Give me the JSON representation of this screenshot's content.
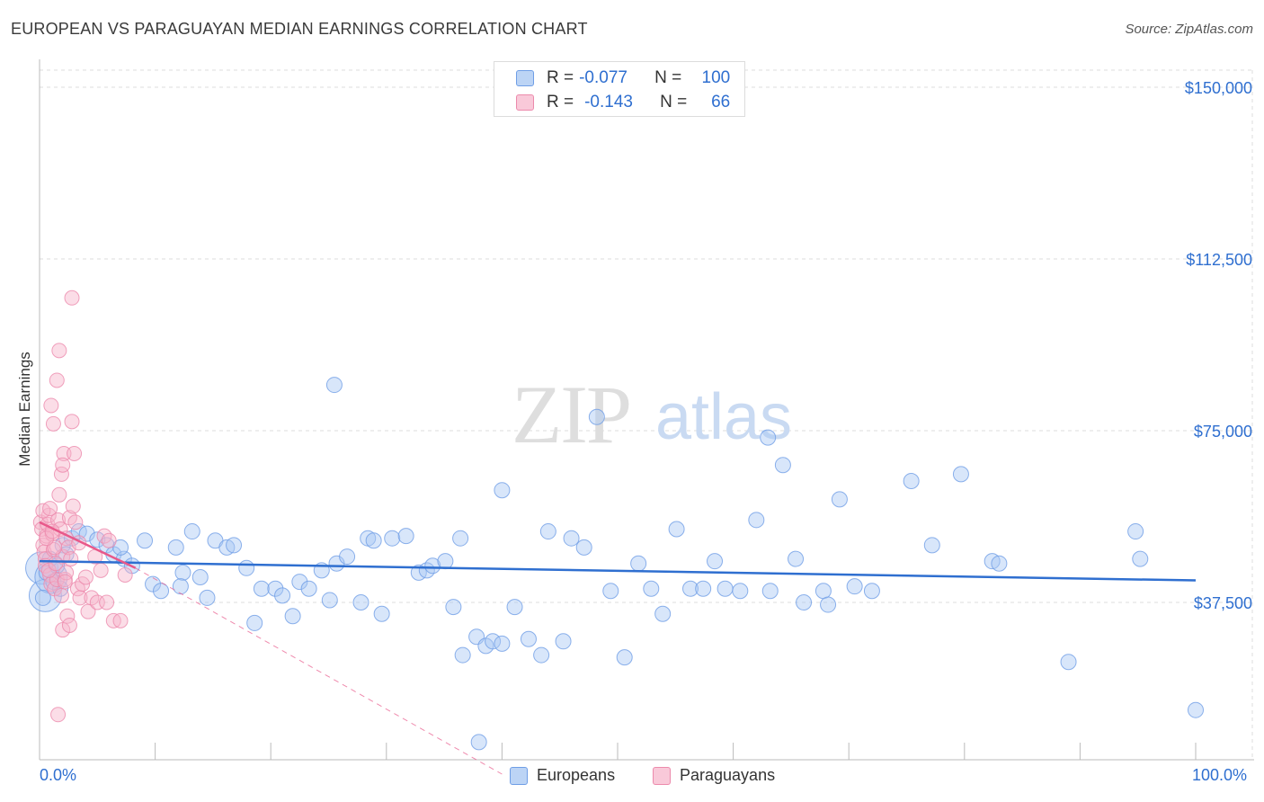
{
  "title": "EUROPEAN VS PARAGUAYAN MEDIAN EARNINGS CORRELATION CHART",
  "source": "Source: ZipAtlas.com",
  "colors": {
    "blue": "#2f6fd0",
    "blue_fill": "#a9c8f3",
    "pink": "#e8588a",
    "pink_fill": "#f7b3ca",
    "grid": "#dddddd"
  },
  "legend": {
    "r_label": "R =",
    "n_label": "N =",
    "rows": [
      {
        "series": "Europeans",
        "r": "-0.077",
        "n": "100"
      },
      {
        "series": "Paraguayans",
        "r": "-0.143",
        "n": "66"
      }
    ]
  },
  "chart_data": {
    "type": "scatter",
    "title": "EUROPEAN VS PARAGUAYAN MEDIAN EARNINGS CORRELATION CHART",
    "xlabel": "",
    "ylabel": "Median Earnings",
    "x_tick_labels": [
      "0.0%",
      "100.0%"
    ],
    "y_tick_labels": [
      "$37,500",
      "$75,000",
      "$112,500",
      "$150,000"
    ],
    "y_ticks": [
      37500,
      75000,
      112500,
      150000
    ],
    "xlim": [
      0,
      100
    ],
    "ylim": [
      0,
      155000
    ],
    "grid": true,
    "legend_position": "bottom",
    "series": [
      {
        "name": "Europeans",
        "color": "#2f6fd0",
        "trend": {
          "x0": 0,
          "y0": 46500,
          "x1": 100,
          "y1": 42300,
          "style": "solid"
        },
        "points": [
          [
            0.3,
            38500
          ],
          [
            0.6,
            44000
          ],
          [
            0.9,
            47000
          ],
          [
            1.2,
            42000
          ],
          [
            1.5,
            45500
          ],
          [
            1.8,
            40500
          ],
          [
            2.0,
            50000
          ],
          [
            2.3,
            48000
          ],
          [
            2.8,
            51500
          ],
          [
            3.4,
            53000
          ],
          [
            4.1,
            52500
          ],
          [
            5.0,
            51200
          ],
          [
            5.8,
            50000
          ],
          [
            6.4,
            48000
          ],
          [
            7.3,
            47000
          ],
          [
            8.0,
            45500
          ],
          [
            9.1,
            51000
          ],
          [
            7.0,
            49500
          ],
          [
            9.8,
            41500
          ],
          [
            10.5,
            40000
          ],
          [
            11.8,
            49500
          ],
          [
            12.4,
            44000
          ],
          [
            13.2,
            53000
          ],
          [
            13.9,
            43000
          ],
          [
            14.5,
            38500
          ],
          [
            15.2,
            51000
          ],
          [
            16.2,
            49500
          ],
          [
            16.8,
            50000
          ],
          [
            17.9,
            45000
          ],
          [
            18.6,
            33000
          ],
          [
            19.2,
            40500
          ],
          [
            20.4,
            40500
          ],
          [
            21.0,
            39000
          ],
          [
            21.9,
            34500
          ],
          [
            22.5,
            42000
          ],
          [
            23.3,
            40500
          ],
          [
            24.4,
            44500
          ],
          [
            25.1,
            38000
          ],
          [
            25.7,
            46000
          ],
          [
            26.6,
            47500
          ],
          [
            27.8,
            37500
          ],
          [
            28.4,
            51500
          ],
          [
            28.9,
            51000
          ],
          [
            29.6,
            35000
          ],
          [
            30.5,
            51500
          ],
          [
            31.7,
            52000
          ],
          [
            32.8,
            44000
          ],
          [
            33.5,
            44500
          ],
          [
            34.0,
            45500
          ],
          [
            35.1,
            46500
          ],
          [
            35.8,
            36500
          ],
          [
            36.4,
            51500
          ],
          [
            37.8,
            30000
          ],
          [
            38.6,
            28000
          ],
          [
            39.2,
            29000
          ],
          [
            40.0,
            28500
          ],
          [
            41.1,
            36500
          ],
          [
            42.3,
            29500
          ],
          [
            43.4,
            26000
          ],
          [
            44.0,
            53000
          ],
          [
            45.3,
            29000
          ],
          [
            46.0,
            51500
          ],
          [
            47.1,
            49500
          ],
          [
            48.2,
            78000
          ],
          [
            49.4,
            40000
          ],
          [
            50.6,
            25500
          ],
          [
            51.8,
            46000
          ],
          [
            52.9,
            40500
          ],
          [
            53.9,
            35000
          ],
          [
            55.1,
            53500
          ],
          [
            56.3,
            40500
          ],
          [
            57.4,
            40500
          ],
          [
            58.4,
            46500
          ],
          [
            59.3,
            40500
          ],
          [
            60.6,
            40000
          ],
          [
            62.0,
            55500
          ],
          [
            63.0,
            73500
          ],
          [
            64.3,
            67500
          ],
          [
            65.4,
            47000
          ],
          [
            66.1,
            37500
          ],
          [
            67.8,
            40000
          ],
          [
            68.2,
            37000
          ],
          [
            69.2,
            60000
          ],
          [
            72.0,
            40000
          ],
          [
            75.4,
            64000
          ],
          [
            77.2,
            50000
          ],
          [
            79.7,
            65500
          ],
          [
            82.4,
            46500
          ],
          [
            89.0,
            24500
          ],
          [
            95.2,
            47000
          ],
          [
            100.0,
            14000
          ],
          [
            25.5,
            85000
          ],
          [
            40.0,
            62000
          ],
          [
            63.2,
            40000
          ],
          [
            70.5,
            41000
          ],
          [
            83.0,
            46000
          ],
          [
            94.8,
            53000
          ],
          [
            36.6,
            26000
          ],
          [
            12.2,
            41000
          ],
          [
            38.0,
            7000
          ]
        ],
        "big_points": [
          [
            0.2,
            45000
          ],
          [
            0.5,
            39000
          ],
          [
            1.0,
            43000
          ]
        ]
      },
      {
        "name": "Paraguayans",
        "color": "#e8588a",
        "trend": {
          "x0": 0,
          "y0": 55000,
          "x1": 8.3,
          "y1": 45000,
          "style": "solid",
          "dashed_to": {
            "x": 40,
            "y": 0
          }
        },
        "points": [
          [
            0.1,
            55000
          ],
          [
            0.2,
            53500
          ],
          [
            0.3,
            50000
          ],
          [
            0.4,
            48500
          ],
          [
            0.5,
            47000
          ],
          [
            0.6,
            52000
          ],
          [
            0.7,
            54500
          ],
          [
            0.8,
            56500
          ],
          [
            0.3,
            57500
          ],
          [
            0.5,
            45500
          ],
          [
            0.9,
            43500
          ],
          [
            1.0,
            41500
          ],
          [
            1.1,
            52500
          ],
          [
            1.2,
            49000
          ],
          [
            1.3,
            40500
          ],
          [
            1.5,
            42500
          ],
          [
            1.6,
            55500
          ],
          [
            1.8,
            53500
          ],
          [
            2.0,
            47500
          ],
          [
            2.2,
            42500
          ],
          [
            2.3,
            51500
          ],
          [
            2.5,
            49500
          ],
          [
            2.6,
            56000
          ],
          [
            1.2,
            76500
          ],
          [
            1.0,
            80500
          ],
          [
            1.5,
            86000
          ],
          [
            1.7,
            92500
          ],
          [
            2.1,
            70000
          ],
          [
            1.9,
            65500
          ],
          [
            2.0,
            67500
          ],
          [
            2.8,
            77000
          ],
          [
            3.0,
            70000
          ],
          [
            3.3,
            40500
          ],
          [
            3.5,
            38500
          ],
          [
            4.2,
            35500
          ],
          [
            4.5,
            38500
          ],
          [
            5.0,
            37500
          ],
          [
            5.6,
            52000
          ],
          [
            5.8,
            37500
          ],
          [
            6.4,
            33500
          ],
          [
            7.0,
            33500
          ],
          [
            7.4,
            43500
          ],
          [
            2.4,
            34500
          ],
          [
            2.0,
            31500
          ],
          [
            2.6,
            32500
          ],
          [
            3.7,
            41500
          ],
          [
            4.0,
            43000
          ],
          [
            1.3,
            49500
          ],
          [
            0.6,
            51500
          ],
          [
            0.8,
            44500
          ],
          [
            1.4,
            46000
          ],
          [
            1.9,
            39000
          ],
          [
            2.3,
            44000
          ],
          [
            2.9,
            58500
          ],
          [
            3.1,
            55000
          ],
          [
            0.9,
            58000
          ],
          [
            1.1,
            53000
          ],
          [
            1.7,
            61000
          ],
          [
            2.7,
            47000
          ],
          [
            3.4,
            50500
          ],
          [
            4.8,
            47500
          ],
          [
            5.3,
            44500
          ],
          [
            6.0,
            51000
          ],
          [
            2.8,
            104000
          ],
          [
            1.6,
            13000
          ],
          [
            2.2,
            42000
          ]
        ]
      }
    ]
  }
}
